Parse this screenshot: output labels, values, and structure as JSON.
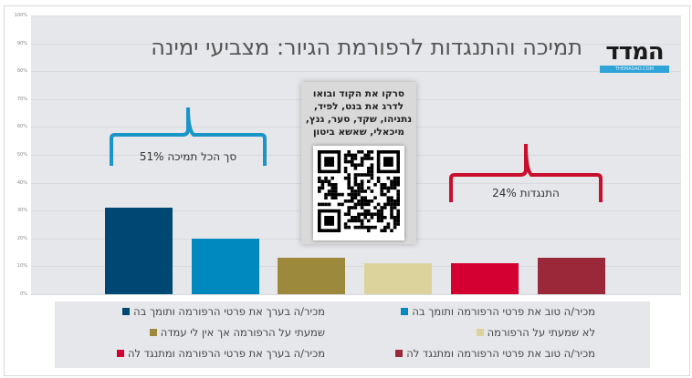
{
  "title": "תמיכה והתנגדות לרפורמת הגיור: מצביעי ימינה",
  "logo": {
    "word": "המדד",
    "sub": "THEMADAD.COM"
  },
  "qr_card": {
    "text_lines": [
      "סרקו את הקוד ובואו",
      "לדרג את בנט, לפיד,",
      "נתניהו, שקד, סער, גנץ,",
      "מיכאלי, שאשא ביטון"
    ]
  },
  "annotations": {
    "support": {
      "label": "סך הכל תמיכה 51%",
      "color": "#1a95c8"
    },
    "oppose": {
      "label": "התנגדות 24%",
      "color": "#c8102e"
    }
  },
  "legend": [
    {
      "label": "מכיר/ה בערך את פרטי הרפורמה ותומך בה",
      "color": "#004773"
    },
    {
      "label": "מכיר/ה טוב את פרטי הרפורמה ותומך בה",
      "color": "#0089bf"
    },
    {
      "label": "שמעתי על הרפורמה אך אין לי עמדה",
      "color": "#9d893c"
    },
    {
      "label": "לא שמעתי על הרפורמה",
      "color": "#dbd39b"
    },
    {
      "label": "מכיר/ה בערך את פרטי הרפורמה ומתנגד לה",
      "color": "#d50032"
    },
    {
      "label": "מכיר/ה טוב את פרטי הרפורמה ומתנגד לה",
      "color": "#9b2838"
    }
  ],
  "chart_data": {
    "type": "bar",
    "title": "תמיכה והתנגדות לרפורמת הגיור: מצביעי ימינה",
    "categories": [
      "מכיר/ה בערך את פרטי הרפורמה ותומך בה",
      "מכיר/ה טוב את פרטי הרפורמה ותומך בה",
      "שמעתי על הרפורמה אך אין לי עמדה",
      "לא שמעתי על הרפורמה",
      "מכיר/ה בערך את פרטי הרפורמה ומתנגד לה",
      "מכיר/ה טוב את פרטי הרפורמה ומתנגד לה"
    ],
    "values": [
      31,
      20,
      13,
      11,
      11,
      13
    ],
    "colors": [
      "#004773",
      "#0089bf",
      "#9d893c",
      "#dbd39b",
      "#d50032",
      "#9b2838"
    ],
    "xlabel": "",
    "ylabel": "",
    "ylim": [
      0,
      100
    ],
    "yticks": [
      "0%",
      "10%",
      "20%",
      "30%",
      "40%",
      "50%",
      "60%",
      "70%",
      "80%",
      "90%",
      "100%"
    ],
    "grid": true,
    "legend_position": "bottom",
    "annotations": [
      "סך הכל תמיכה 51%",
      "התנגדות 24%"
    ]
  }
}
